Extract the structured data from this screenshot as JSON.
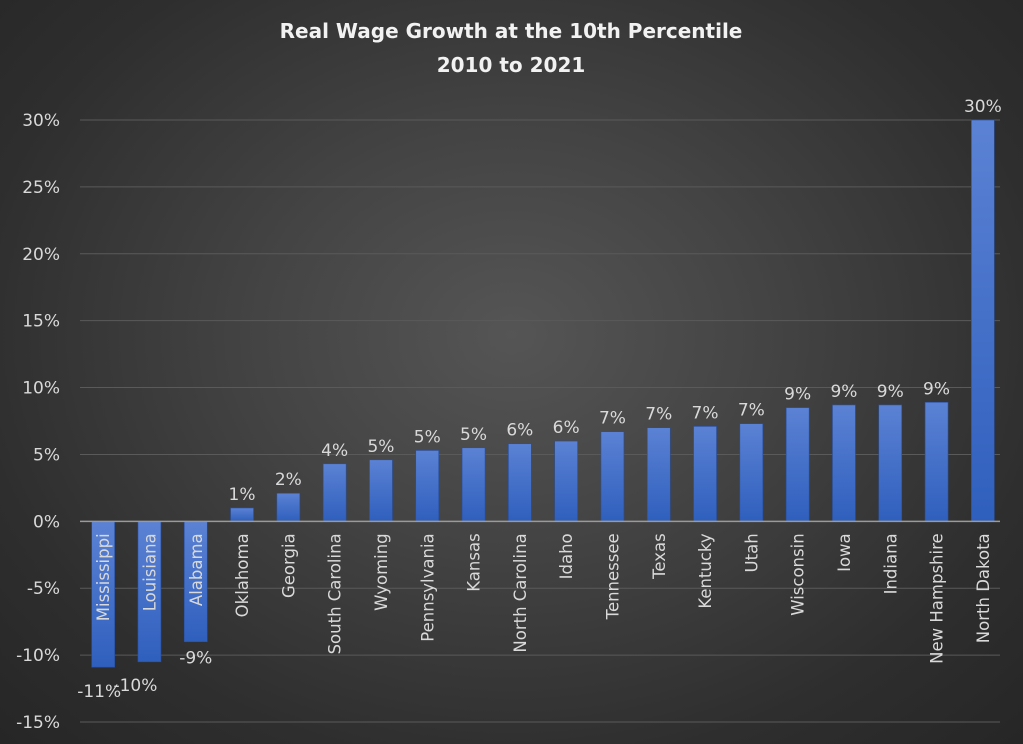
{
  "chart_data": {
    "type": "bar",
    "title": "Real Wage Growth at the 10th Percentile",
    "subtitle": "2010 to 2021",
    "xlabel": "",
    "ylabel": "",
    "ylim": [
      -15,
      30
    ],
    "y_ticks": [
      30,
      25,
      20,
      15,
      10,
      5,
      0,
      -5,
      -10,
      -15
    ],
    "y_tick_labels": [
      "30%",
      "25%",
      "20%",
      "15%",
      "10%",
      "5%",
      "0%",
      "-5%",
      "-10%",
      "-15%"
    ],
    "grid": true,
    "legend": "none",
    "bar_color": "#4472C4",
    "categories": [
      "Mississippi",
      "Louisiana",
      "Alabama",
      "Oklahoma",
      "Georgia",
      "South Carolina",
      "Wyoming",
      "Pennsylvania",
      "Kansas",
      "North Carolina",
      "Idaho",
      "Tennessee",
      "Texas",
      "Kentucky",
      "Utah",
      "Wisconsin",
      "Iowa",
      "Indiana",
      "New Hampshire",
      "North Dakota"
    ],
    "values": [
      -10.9,
      -10.5,
      -9.0,
      1.0,
      2.1,
      4.3,
      4.6,
      5.3,
      5.5,
      5.8,
      6.0,
      6.7,
      7.0,
      7.1,
      7.3,
      8.5,
      8.7,
      8.7,
      8.9,
      30.0
    ],
    "data_labels": [
      "-11%",
      "-10%",
      "-9%",
      "1%",
      "2%",
      "4%",
      "5%",
      "5%",
      "5%",
      "6%",
      "6%",
      "7%",
      "7%",
      "7%",
      "7%",
      "9%",
      "9%",
      "9%",
      "9%",
      "30%"
    ]
  }
}
